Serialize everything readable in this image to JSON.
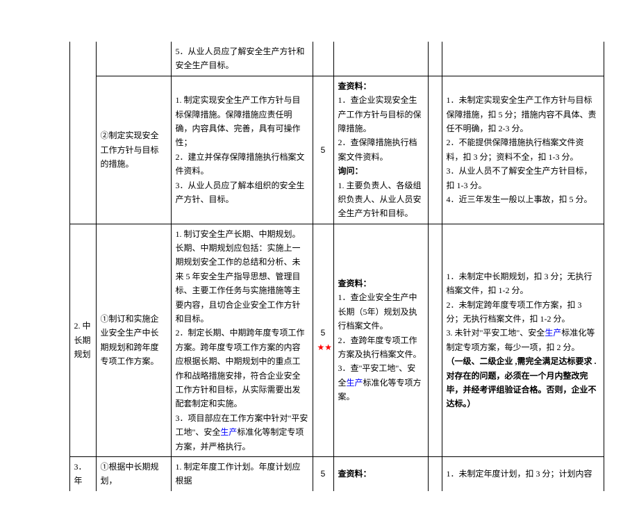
{
  "row1": {
    "c": "5．从业人员应了解安全生产方针和安全生产目标。"
  },
  "row2": {
    "b": "②制定实现安全工作方针与目标的措施。",
    "c": "1. 制定实现安全生产工作方针与目标保障措施。保障措施应责任明确，内容具体、完善，具有可操作性；\n2．建立并保存保障措施执行档案文件资料。\n3．从业人员应了解本组织的安全生产方针、目标。",
    "d": "5",
    "e": "查资料：\n1．查企业实现安全生产工作方针与目标的保障措施。\n2．查保障措施执行档案文件资料。\n询问：\n1. 主要负责人、各级组织负责人、从业人员安全生产方针和目标。",
    "e_head1": "查资料：",
    "e_item1": "1．查企业实现安全生产工作方针与目标的保障措施。",
    "e_item2": "2．查保障措施执行档案文件资料。",
    "e_head2": "询问：",
    "e_item3": "1. 主要负责人、各级组织负责人、从业人员安全生产方针和目标。",
    "g": "1．未制定实现安全生产工作方针与目标保障措施，扣 5 分；措施内容不具体、责任不明确，扣 2-3 分。\n2．不能提供保障措施执行档案文件资料，扣 3 分；资料不全，扣 1-3 分。\n3．从业人员不了解安全生产方针目标，扣 1-3 分。\n4．近三年发生一般以上事故，扣 5 分。"
  },
  "row3": {
    "a": "2. 中长期规划",
    "b": "①制订和实施企业安全生产中长期规划和跨年度专项工作方案。",
    "c_part1": "1. 制订安全生产长期、中期规划。长期、中期规划应包括：实施上一期规划安全工作的总结和分析、未来 5 年安全生产指导思想、管理目标、主要工作任务与实施措施等主要内容，且切合企业安全工作方针和目标。\n2．制定长期、中期跨年度专项工作方案。跨年度专项工作方案的内容应根据长期、中期规划中的重点工作和战略措施安排，符合企业安全工作方针和目标，从实际需要出发配套制定和实施。\n3．项目部应在工作方案中针对\"平安工地\"、安全",
    "c_blue": "生产",
    "c_part2": "标准化等制定专项方案，并严格执行。",
    "d": "5",
    "stars": "★★",
    "e_head": "查资料：",
    "e_item1": "1．查企业安全生产中长期（5年）规划及执行档案文件。",
    "e_item2": "2．查跨年度专项工作方案及执行档案文件。",
    "e_item3a": "3．查\"平安工地\"、安全",
    "e_blue": "生产",
    "e_item3b": "标准化等专项方案。",
    "g_item1": "1．未制定中长期规划，扣 3 分；无执行档案文件，扣 1-2 分。",
    "g_item2": "2．未制定跨年度专项工作方案，扣 3 分；无执行档案文件，扣 1-2 分。",
    "g_item3a": "3. 未针对\"平安工地\"、安全",
    "g_blue": "生产",
    "g_item3b": "标准化等制定专项方案，每少一项，扣 2 分。",
    "g_bold": "（一级、二级企业 ,需完全满足达标要求 .对存在的问题，必须在一个月内整改完毕，并经考评组验证合格。否则，企业不达标。）"
  },
  "row4": {
    "a": "3．年",
    "b": "①根据中长期规划，",
    "c": "1. 制定年度工作计划。年度计划应根据",
    "d": "5",
    "e": "查资料：",
    "g": "1．未制定年度计划，扣 3 分；计划内容"
  }
}
